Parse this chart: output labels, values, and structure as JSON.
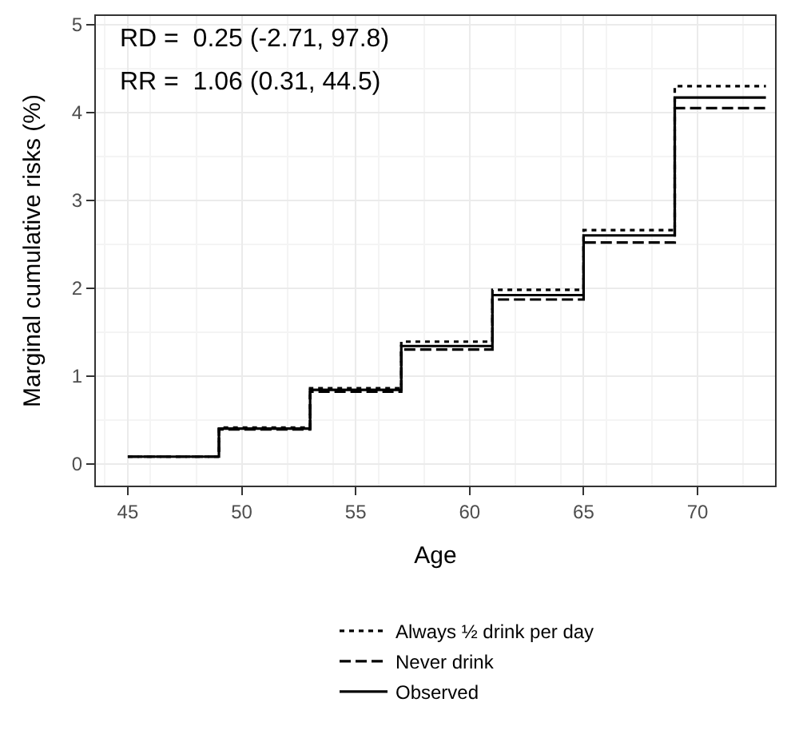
{
  "chart_data": {
    "type": "step",
    "xlabel": "Age",
    "ylabel": "Marginal cumulative risks (%)",
    "annotations": [
      "RD =  0.25 (-2.71, 97.8)",
      "RR =  1.06 (0.31, 44.5)"
    ],
    "x": [
      45,
      49,
      53,
      57,
      61,
      65,
      69,
      73
    ],
    "series": [
      {
        "name": "Always ½ drink per day",
        "color": "#000000",
        "line_style": "dotted",
        "values": [
          0.08,
          0.41,
          0.86,
          1.39,
          1.98,
          2.66,
          4.3,
          4.3
        ]
      },
      {
        "name": "Never drink",
        "color": "#000000",
        "line_style": "dashed",
        "values": [
          0.08,
          0.39,
          0.82,
          1.3,
          1.87,
          2.52,
          4.05,
          4.05
        ]
      },
      {
        "name": "Observed",
        "color": "#000000",
        "line_style": "solid",
        "values": [
          0.08,
          0.4,
          0.84,
          1.34,
          1.92,
          2.6,
          4.17,
          4.17
        ]
      }
    ],
    "xlim": [
      43.6,
      73.4
    ],
    "xticks": [
      45,
      50,
      55,
      60,
      65,
      70
    ],
    "ylim": [
      -0.25,
      5.1
    ],
    "yticks": [
      0,
      1,
      2,
      3,
      4,
      5
    ],
    "grid": true,
    "legend": "bottom",
    "marker": "none"
  }
}
